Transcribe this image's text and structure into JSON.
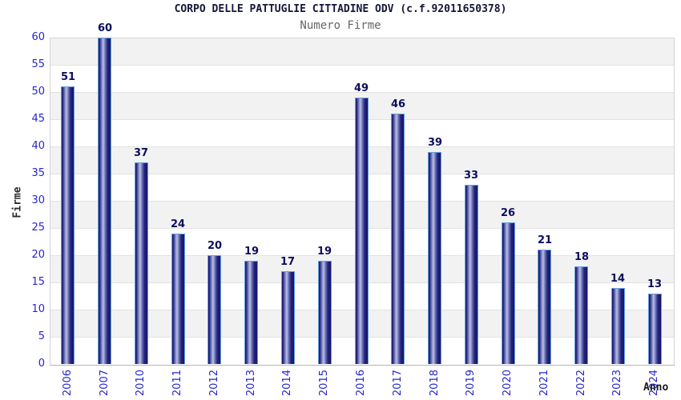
{
  "chart_data": {
    "type": "bar",
    "title": "CORPO DELLE PATTUGLIE CITTADINE ODV (c.f.92011650378)",
    "subtitle": "Numero Firme",
    "xlabel": "Anno",
    "ylabel": "Firme",
    "categories": [
      "2006",
      "2007",
      "2010",
      "2011",
      "2012",
      "2013",
      "2014",
      "2015",
      "2016",
      "2017",
      "2018",
      "2019",
      "2020",
      "2021",
      "2022",
      "2023",
      "2024"
    ],
    "values": [
      51,
      60,
      37,
      24,
      20,
      19,
      17,
      19,
      49,
      46,
      39,
      33,
      26,
      21,
      18,
      14,
      13
    ],
    "ylim": [
      0,
      60
    ],
    "yticks": [
      0,
      5,
      10,
      15,
      20,
      25,
      30,
      35,
      40,
      45,
      50,
      55,
      60
    ],
    "grid": true,
    "legend_position": "none",
    "plot_background_bands": [
      "#f2f2f2",
      "#ffffff"
    ]
  },
  "colors": {
    "title": "#15153a",
    "subtitle": "#666666",
    "axis_tick_label": "#2626cc",
    "value_label": "#0d0d5e",
    "bar_dark": "#15156a",
    "bar_mid": "#2e2e85",
    "bar_light": "#b9bfe4",
    "bar_outline": "#63a0e0",
    "gridline": "#e2e2e2",
    "plot_border": "#d4d4d4",
    "band_gray": "#f2f2f2",
    "band_white": "#ffffff"
  }
}
